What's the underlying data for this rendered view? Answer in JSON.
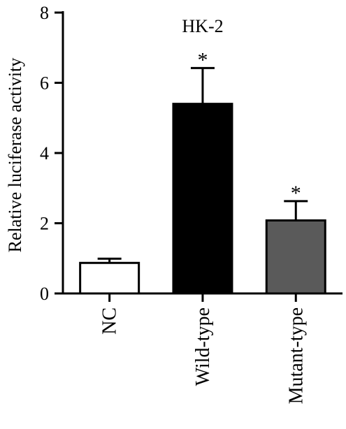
{
  "chart_data": {
    "type": "bar",
    "title": "HK-2",
    "xlabel": "",
    "ylabel": "Relative luciferase activity",
    "ylim": [
      0,
      8
    ],
    "yticks": [
      0,
      2,
      4,
      6,
      8
    ],
    "grid": false,
    "categories": [
      "NC",
      "Wild-type",
      "Mutant-type"
    ],
    "values": [
      0.87,
      5.4,
      2.08
    ],
    "errors": [
      0.12,
      1.02,
      0.55
    ],
    "colors": [
      "#ffffff",
      "#000000",
      "#5a5a5a"
    ],
    "significance": [
      "",
      "*",
      "*"
    ]
  }
}
